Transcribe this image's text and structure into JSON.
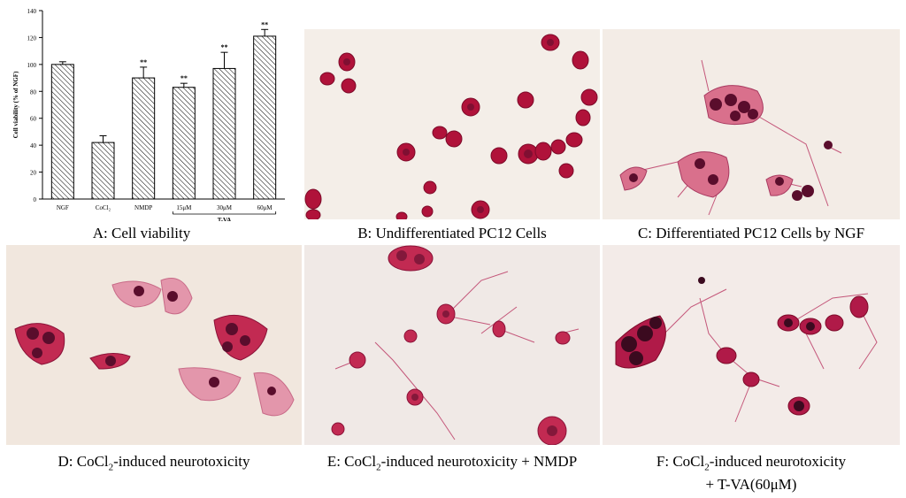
{
  "chart_data": {
    "type": "bar",
    "categories": [
      "NGF",
      "CoCl₂",
      "NMDP",
      "15μM",
      "30μM",
      "60μM"
    ],
    "values": [
      100,
      42,
      90,
      83,
      97,
      121
    ],
    "errors": [
      2,
      5,
      8,
      3,
      12,
      5
    ],
    "significance": [
      "",
      "",
      "**",
      "**",
      "**",
      "**"
    ],
    "group_label": "T-VA",
    "group_members": [
      "15μM",
      "30μM",
      "60μM"
    ],
    "ylabel": "Cell viability (% of NGF)",
    "ylim": [
      0,
      140
    ],
    "yticks": [
      0,
      20,
      40,
      60,
      80,
      100,
      120,
      140
    ],
    "bar_fill": "diagonal hatch",
    "grid": false
  },
  "captions": {
    "a": "A: Cell viability",
    "b": "B: Undifferentiated PC12 Cells",
    "c": "C: Differentiated PC12 Cells by NGF",
    "d_pre": "D: CoCl",
    "d_sub": "2",
    "d_post": "-induced neurotoxicity",
    "e_pre": "E: CoCl",
    "e_sub": "2",
    "e_post": "-induced neurotoxicity + NMDP",
    "f_pre": "F: CoCl",
    "f_sub": "2",
    "f_post": "-induced neurotoxicity",
    "f_line2": "+ T-VA(60μM)"
  },
  "colors": {
    "micro_bg": "#f3ece6",
    "cell_dark": "#b0123a",
    "cell_nucleus": "#5a0d2c",
    "cell_pink": "#d9708c",
    "neurite": "#c4577a"
  }
}
